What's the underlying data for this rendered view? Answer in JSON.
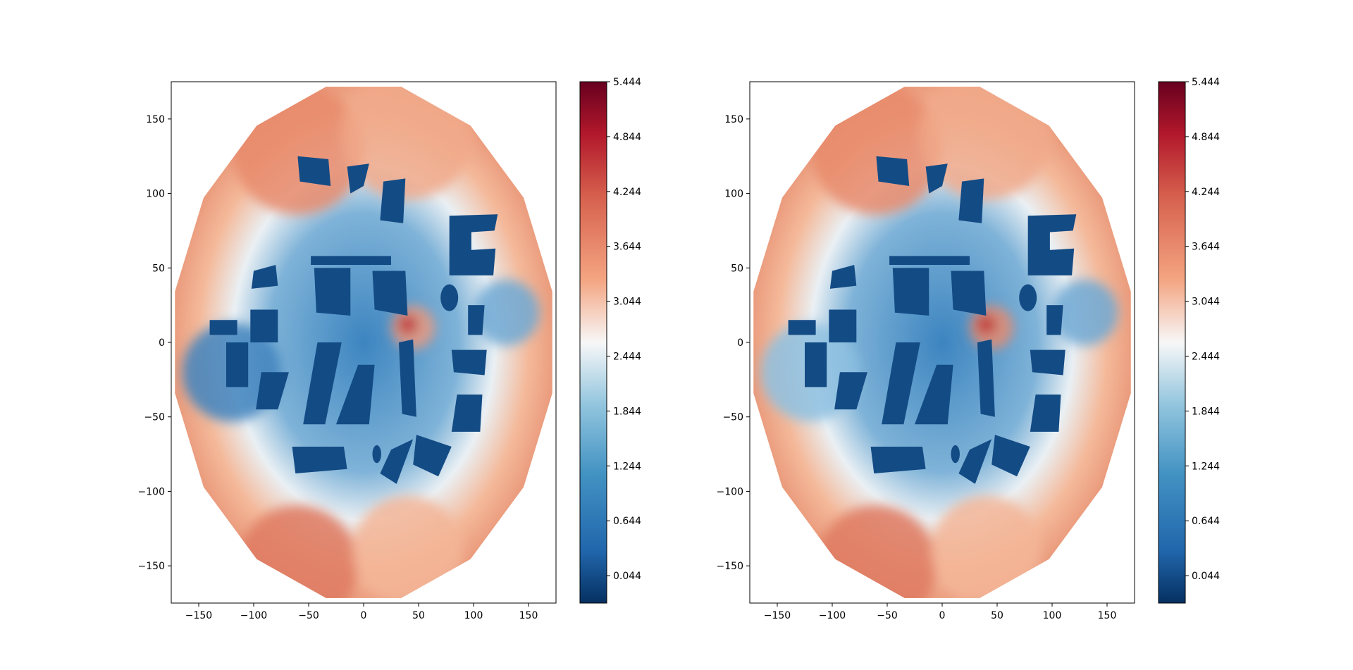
{
  "chart_data": [
    {
      "type": "heatmap",
      "colormap": "RdBu_r",
      "xlim": [
        -175,
        175
      ],
      "ylim": [
        -175,
        175
      ],
      "xticks": [
        "−150",
        "−100",
        "−50",
        "0",
        "50",
        "100",
        "150"
      ],
      "yticks": [
        "150",
        "100",
        "50",
        "0",
        "−50",
        "−100",
        "−150"
      ],
      "colorbar": {
        "range": [
          -0.256,
          5.444
        ],
        "ticks": [
          "5.444",
          "4.844",
          "4.244",
          "3.644",
          "3.044",
          "2.444",
          "1.844",
          "1.244",
          "0.644",
          "0.044"
        ]
      }
    },
    {
      "type": "heatmap",
      "colormap": "RdBu_r",
      "xlim": [
        -175,
        175
      ],
      "ylim": [
        -175,
        175
      ],
      "xticks": [
        "−150",
        "−100",
        "−50",
        "0",
        "50",
        "100",
        "150"
      ],
      "yticks": [
        "150",
        "100",
        "50",
        "0",
        "−50",
        "−100",
        "−150"
      ],
      "colorbar": {
        "range": [
          -0.256,
          5.444
        ],
        "ticks": [
          "5.444",
          "4.844",
          "4.244",
          "3.644",
          "3.044",
          "2.444",
          "1.844",
          "1.244",
          "0.644",
          "0.044"
        ]
      }
    }
  ],
  "colors": {
    "high": "#67001f",
    "mid": "#f7f7f7",
    "low": "#053061",
    "building": "#134b85"
  }
}
